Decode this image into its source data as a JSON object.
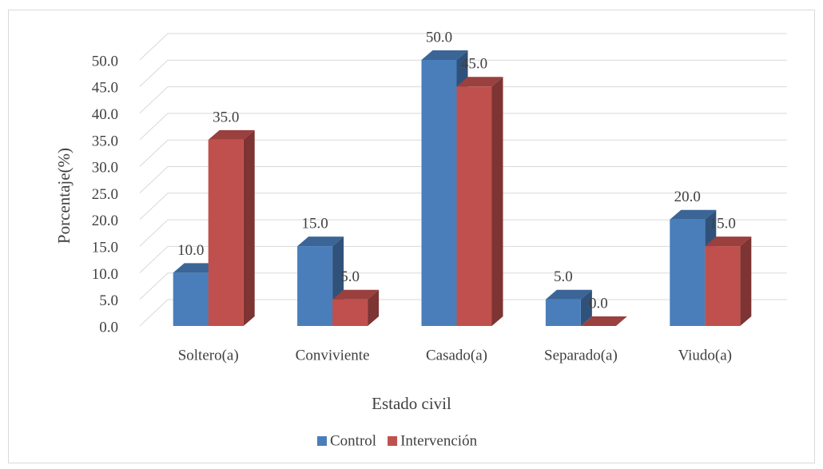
{
  "chart_data": {
    "type": "bar3d",
    "x_label": "Estado civil",
    "y_label": "Porcentaje(%)",
    "categories": [
      "Soltero(a)",
      "Conviviente",
      "Casado(a)",
      "Separado(a)",
      "Viudo(a)"
    ],
    "series": [
      {
        "name": "Control",
        "color": "#4a7ebb",
        "values": [
          10,
          15,
          50,
          5,
          20
        ],
        "value_labels": [
          "10.0",
          "15.0",
          "50.0",
          "5.0",
          "20.0"
        ]
      },
      {
        "name": "Intervención",
        "color": "#c0504d",
        "values": [
          35,
          5,
          45,
          0,
          15
        ],
        "value_labels": [
          "35.0",
          "5.0",
          "45.0",
          "0.0",
          "15.0"
        ]
      }
    ],
    "ylim": [
      0,
      50
    ],
    "yticks": [
      {
        "value": 0,
        "label": "0.0"
      },
      {
        "value": 5,
        "label": "5.0"
      },
      {
        "value": 10,
        "label": "10.0"
      },
      {
        "value": 15,
        "label": "15.0"
      },
      {
        "value": 20,
        "label": "20.0"
      },
      {
        "value": 25,
        "label": "25.0"
      },
      {
        "value": 30,
        "label": "30.0"
      },
      {
        "value": 35,
        "label": "35.0"
      },
      {
        "value": 40,
        "label": "40.0"
      },
      {
        "value": 45,
        "label": "45.0"
      },
      {
        "value": 50,
        "label": "50.0"
      }
    ],
    "grid": true,
    "legend": "bottom"
  }
}
